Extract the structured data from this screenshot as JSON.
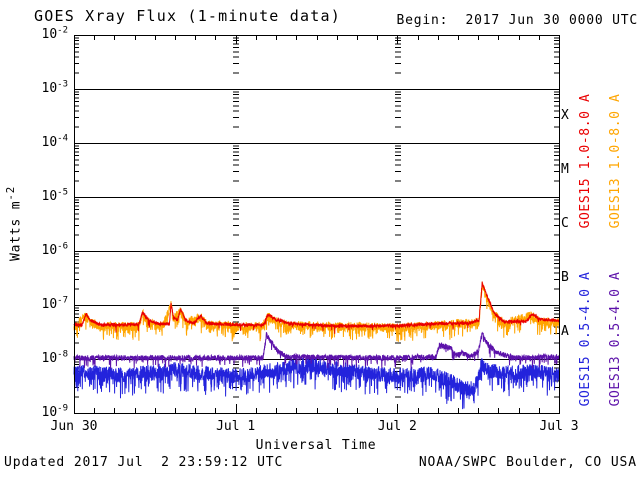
{
  "header": {
    "title": "GOES Xray Flux (1-minute data)",
    "begin_label": "Begin:  2017 Jun 30 0000 UTC"
  },
  "footer": {
    "updated": "Updated 2017 Jul  2 23:59:12 UTC",
    "source": "NOAA/SWPC Boulder, CO USA"
  },
  "chart_data": {
    "type": "line",
    "title": "GOES Xray Flux (1-minute data)",
    "xlabel": "Universal Time",
    "ylabel_base": "Watts m",
    "ylabel_exp": "-2",
    "x_start": "2017 Jun 30 0000 UTC",
    "x_span_days": 3,
    "x_ticks": [
      {
        "t": 0,
        "label": "Jun 30"
      },
      {
        "t": 1,
        "label": "Jul 1"
      },
      {
        "t": 2,
        "label": "Jul 2"
      },
      {
        "t": 3,
        "label": "Jul 3"
      }
    ],
    "x_minor_tick_hours": 3,
    "y_log10_range": [
      -9,
      -2
    ],
    "y_tick_exponents": [
      -2,
      -3,
      -4,
      -5,
      -6,
      -7,
      -8,
      -9
    ],
    "flare_classes": [
      {
        "label": "X",
        "mid_exp": -3.5
      },
      {
        "label": "M",
        "mid_exp": -4.5
      },
      {
        "label": "C",
        "mid_exp": -5.5
      },
      {
        "label": "B",
        "mid_exp": -6.5
      },
      {
        "label": "A",
        "mid_exp": -7.5
      }
    ],
    "grid": {
      "horizontal_solid_decades": true,
      "day_boundary_tick_columns": [
        1,
        2
      ]
    },
    "series": [
      {
        "name": "GOES15 1.0-8.0 A",
        "color": "#ea0000",
        "units": "Watts m-2",
        "noise_dex": 0.03,
        "spike_prob": 0.02,
        "spike_dex": 0.12,
        "seed": 7,
        "keypoints": [
          [
            0.0,
            4.3e-08
          ],
          [
            0.05,
            4.3e-08
          ],
          [
            0.075,
            6.8e-08
          ],
          [
            0.1,
            5.2e-08
          ],
          [
            0.17,
            4.3e-08
          ],
          [
            0.4,
            4.3e-08
          ],
          [
            0.425,
            7.4e-08
          ],
          [
            0.46,
            5.2e-08
          ],
          [
            0.55,
            4.3e-08
          ],
          [
            0.59,
            4.5e-08
          ],
          [
            0.6,
            1.05e-07
          ],
          [
            0.615,
            6e-08
          ],
          [
            0.64,
            5.2e-08
          ],
          [
            0.66,
            8.6e-08
          ],
          [
            0.69,
            5.2e-08
          ],
          [
            0.74,
            4.6e-08
          ],
          [
            0.785,
            6.3e-08
          ],
          [
            0.82,
            4.6e-08
          ],
          [
            1.0,
            4.3e-08
          ],
          [
            1.17,
            4.3e-08
          ],
          [
            1.2,
            6.6e-08
          ],
          [
            1.25,
            5.4e-08
          ],
          [
            1.33,
            4.5e-08
          ],
          [
            1.6,
            4.1e-08
          ],
          [
            2.0,
            4.1e-08
          ],
          [
            2.3,
            4.6e-08
          ],
          [
            2.45,
            4.6e-08
          ],
          [
            2.505,
            5.2e-08
          ],
          [
            2.525,
            2.55e-07
          ],
          [
            2.55,
            1.6e-07
          ],
          [
            2.6,
            7e-08
          ],
          [
            2.66,
            4.9e-08
          ],
          [
            2.8,
            5e-08
          ],
          [
            2.835,
            6.9e-08
          ],
          [
            2.88,
            5.4e-08
          ],
          [
            3.0,
            5.1e-08
          ]
        ]
      },
      {
        "name": "GOES13 1.0-8.0 A",
        "color": "#ffa500",
        "units": "Watts m-2",
        "noise_dex": 0.085,
        "spike_prob": 0.18,
        "spike_dex": 0.22,
        "seed": 3,
        "keypoints": [
          [
            0.0,
            4e-08
          ],
          [
            0.075,
            6.3e-08
          ],
          [
            0.1,
            4.8e-08
          ],
          [
            0.17,
            4e-08
          ],
          [
            0.4,
            4e-08
          ],
          [
            0.425,
            6.9e-08
          ],
          [
            0.46,
            4.8e-08
          ],
          [
            0.55,
            4e-08
          ],
          [
            0.6,
            9.8e-08
          ],
          [
            0.615,
            5.6e-08
          ],
          [
            0.66,
            8e-08
          ],
          [
            0.69,
            4.8e-08
          ],
          [
            0.785,
            5.9e-08
          ],
          [
            0.82,
            4.3e-08
          ],
          [
            1.0,
            4e-08
          ],
          [
            1.17,
            4e-08
          ],
          [
            1.2,
            6.1e-08
          ],
          [
            1.25,
            5e-08
          ],
          [
            1.33,
            4.2e-08
          ],
          [
            2.0,
            3.8e-08
          ],
          [
            2.3,
            4.3e-08
          ],
          [
            2.505,
            4.8e-08
          ],
          [
            2.525,
            2.4e-07
          ],
          [
            2.55,
            1.5e-07
          ],
          [
            2.6,
            6.5e-08
          ],
          [
            2.66,
            4.6e-08
          ],
          [
            2.835,
            6.4e-08
          ],
          [
            2.88,
            5e-08
          ],
          [
            3.0,
            4.7e-08
          ]
        ]
      },
      {
        "name": "GOES15 0.5-4.0 A",
        "color": "#2323dc",
        "units": "Watts m-2",
        "noise_dex": 0.14,
        "spike_prob": 0.22,
        "spike_dex": 0.33,
        "seed": 11,
        "keypoints": [
          [
            0.0,
            6e-09
          ],
          [
            0.3,
            5e-09
          ],
          [
            0.6,
            6.5e-09
          ],
          [
            0.8,
            5.5e-09
          ],
          [
            1.0,
            4.8e-09
          ],
          [
            1.2,
            6e-09
          ],
          [
            1.45,
            8e-09
          ],
          [
            1.6,
            7e-09
          ],
          [
            1.8,
            5.5e-09
          ],
          [
            2.0,
            5e-09
          ],
          [
            2.2,
            5.5e-09
          ],
          [
            2.32,
            4e-09
          ],
          [
            2.42,
            2.8e-09
          ],
          [
            2.48,
            3e-09
          ],
          [
            2.525,
            8.5e-09
          ],
          [
            2.57,
            6e-09
          ],
          [
            2.7,
            5.5e-09
          ],
          [
            2.85,
            6e-09
          ],
          [
            3.0,
            5e-09
          ]
        ]
      },
      {
        "name": "GOES13 0.5-4.0 A",
        "color": "#5c12aa",
        "units": "Watts m-2",
        "noise_dex": 0.05,
        "spike_prob": 0.08,
        "spike_dex": 0.18,
        "seed": 5,
        "keypoints": [
          [
            0.0,
            1.05e-08
          ],
          [
            1.17,
            1.05e-08
          ],
          [
            1.19,
            2.8e-08
          ],
          [
            1.21,
            2.3e-08
          ],
          [
            1.26,
            1.4e-08
          ],
          [
            1.32,
            1.1e-08
          ],
          [
            2.0,
            1.05e-08
          ],
          [
            2.24,
            1.1e-08
          ],
          [
            2.26,
            1.8e-08
          ],
          [
            2.33,
            1.6e-08
          ],
          [
            2.36,
            1.15e-08
          ],
          [
            2.4,
            1.3e-08
          ],
          [
            2.45,
            1.1e-08
          ],
          [
            2.5,
            1.35e-08
          ],
          [
            2.525,
            3e-08
          ],
          [
            2.555,
            1.9e-08
          ],
          [
            2.62,
            1.3e-08
          ],
          [
            2.72,
            1.05e-08
          ],
          [
            3.0,
            1.1e-08
          ]
        ]
      }
    ]
  }
}
